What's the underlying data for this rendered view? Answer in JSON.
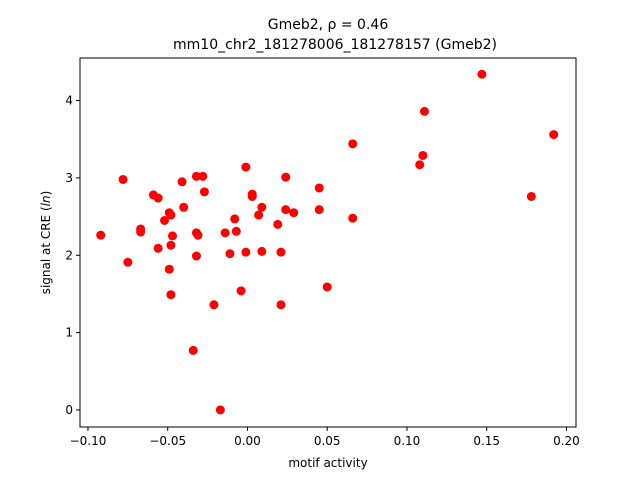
{
  "chart_data": {
    "type": "scatter",
    "title_line1": "Gmeb2, ρ = 0.46",
    "title_line2": "mm10_chr2_181278006_181278157 (Gmeb2)",
    "xlabel": "motif activity",
    "ylabel": "signal at CRE (ln)",
    "xlim": [
      -0.105,
      0.206
    ],
    "ylim": [
      -0.22,
      4.55
    ],
    "xticks": [
      -0.1,
      -0.05,
      0.0,
      0.05,
      0.1,
      0.15,
      0.2
    ],
    "xtick_labels": [
      "−0.10",
      "−0.05",
      "0.00",
      "0.05",
      "0.10",
      "0.15",
      "0.20"
    ],
    "yticks": [
      0,
      1,
      2,
      3,
      4
    ],
    "ytick_labels": [
      "0",
      "1",
      "2",
      "3",
      "4"
    ],
    "grid": false,
    "marker_color": "#ff0000",
    "points": [
      [
        -0.092,
        2.26
      ],
      [
        -0.078,
        2.98
      ],
      [
        -0.075,
        1.91
      ],
      [
        -0.067,
        2.3
      ],
      [
        -0.067,
        2.34
      ],
      [
        -0.059,
        2.78
      ],
      [
        -0.056,
        2.74
      ],
      [
        -0.056,
        2.09
      ],
      [
        -0.052,
        2.45
      ],
      [
        -0.049,
        2.55
      ],
      [
        -0.048,
        2.52
      ],
      [
        -0.048,
        2.13
      ],
      [
        -0.047,
        2.25
      ],
      [
        -0.049,
        1.82
      ],
      [
        -0.048,
        1.49
      ],
      [
        -0.041,
        2.95
      ],
      [
        -0.04,
        2.62
      ],
      [
        -0.032,
        3.02
      ],
      [
        -0.028,
        3.02
      ],
      [
        -0.027,
        2.82
      ],
      [
        -0.032,
        2.29
      ],
      [
        -0.031,
        2.26
      ],
      [
        -0.032,
        1.99
      ],
      [
        -0.034,
        0.77
      ],
      [
        -0.021,
        1.36
      ],
      [
        -0.017,
        0.0
      ],
      [
        -0.014,
        2.29
      ],
      [
        -0.011,
        2.02
      ],
      [
        -0.008,
        2.47
      ],
      [
        -0.007,
        2.31
      ],
      [
        -0.004,
        1.54
      ],
      [
        -0.001,
        3.14
      ],
      [
        -0.001,
        2.04
      ],
      [
        0.003,
        2.79
      ],
      [
        0.003,
        2.76
      ],
      [
        0.007,
        2.52
      ],
      [
        0.009,
        2.62
      ],
      [
        0.009,
        2.05
      ],
      [
        0.019,
        2.4
      ],
      [
        0.021,
        2.04
      ],
      [
        0.021,
        1.36
      ],
      [
        0.024,
        3.01
      ],
      [
        0.024,
        2.59
      ],
      [
        0.029,
        2.55
      ],
      [
        0.045,
        2.87
      ],
      [
        0.045,
        2.59
      ],
      [
        0.05,
        1.59
      ],
      [
        0.066,
        3.44
      ],
      [
        0.066,
        2.48
      ],
      [
        0.108,
        3.17
      ],
      [
        0.11,
        3.29
      ],
      [
        0.111,
        3.86
      ],
      [
        0.147,
        4.34
      ],
      [
        0.178,
        2.76
      ],
      [
        0.192,
        3.56
      ]
    ]
  }
}
